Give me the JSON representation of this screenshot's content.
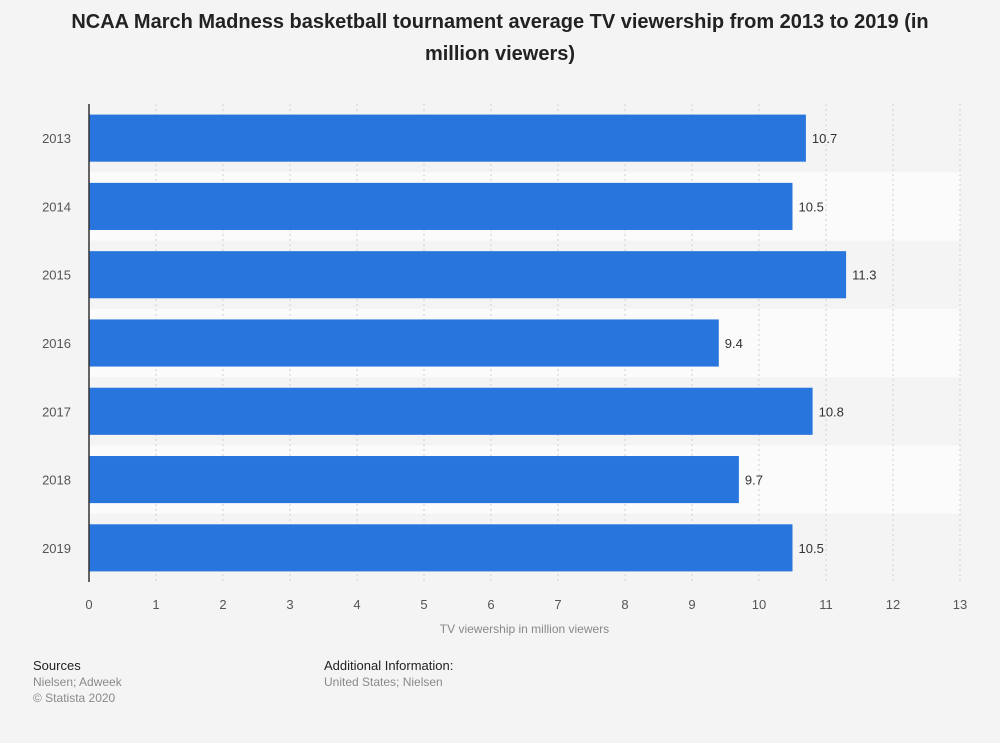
{
  "chart_data": {
    "type": "bar",
    "orientation": "horizontal",
    "title": "NCAA March Madness basketball tournament average TV viewership from 2013 to 2019 (in million viewers)",
    "categories": [
      "2013",
      "2014",
      "2015",
      "2016",
      "2017",
      "2018",
      "2019"
    ],
    "values": [
      10.7,
      10.5,
      11.3,
      9.4,
      10.8,
      9.7,
      10.5
    ],
    "value_labels": [
      "10.7",
      "10.5",
      "11.3",
      "9.4",
      "10.8",
      "9.7",
      "10.5"
    ],
    "xlabel": "TV viewership in million viewers",
    "ylabel": "",
    "xlim": [
      0,
      13
    ],
    "ticks": [
      "0",
      "1",
      "2",
      "3",
      "4",
      "5",
      "6",
      "7",
      "8",
      "9",
      "10",
      "11",
      "12",
      "13"
    ],
    "grid": true,
    "bar_color": "#2876dd"
  },
  "footer": {
    "sources_heading": "Sources",
    "sources_text": "Nielsen; Adweek",
    "copyright": "© Statista 2020",
    "additional_heading": "Additional Information:",
    "additional_text": "United States; Nielsen"
  }
}
